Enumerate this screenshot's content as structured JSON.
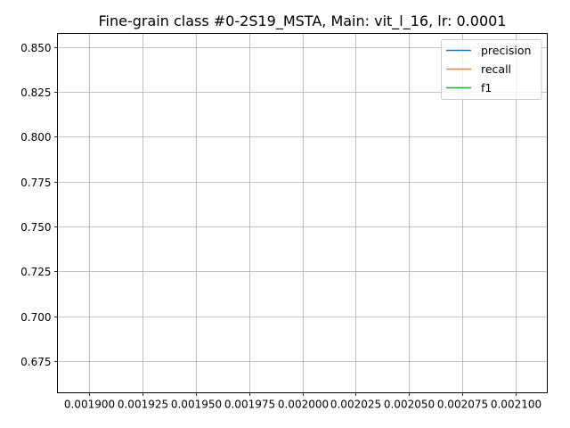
{
  "chart_data": {
    "type": "line",
    "title": "Fine-grain class #0-2S19_MSTA, Main: vit_l_16, lr: 0.0001",
    "xlabel": "",
    "ylabel": "",
    "xlim": [
      0.001885,
      0.002115
    ],
    "ylim": [
      0.6575,
      0.8575
    ],
    "x_ticks": [
      0.0019,
      0.001925,
      0.00195,
      0.001975,
      0.002,
      0.002025,
      0.00205,
      0.002075,
      0.0021
    ],
    "x_tick_labels": [
      "0.001900",
      "0.001925",
      "0.001950",
      "0.001975",
      "0.002000",
      "0.002025",
      "0.002050",
      "0.002075",
      "0.002100"
    ],
    "y_ticks": [
      0.675,
      0.7,
      0.725,
      0.75,
      0.775,
      0.8,
      0.825,
      0.85
    ],
    "y_tick_labels": [
      "0.675",
      "0.700",
      "0.725",
      "0.750",
      "0.775",
      "0.800",
      "0.825",
      "0.850"
    ],
    "grid": true,
    "legend_position": "top-right",
    "series": [
      {
        "name": "precision",
        "color": "#1f77b4",
        "x": [],
        "y": []
      },
      {
        "name": "recall",
        "color": "#ff7f0e",
        "x": [],
        "y": []
      },
      {
        "name": "f1",
        "color": "#2ca02c",
        "x": [],
        "y": []
      }
    ]
  }
}
